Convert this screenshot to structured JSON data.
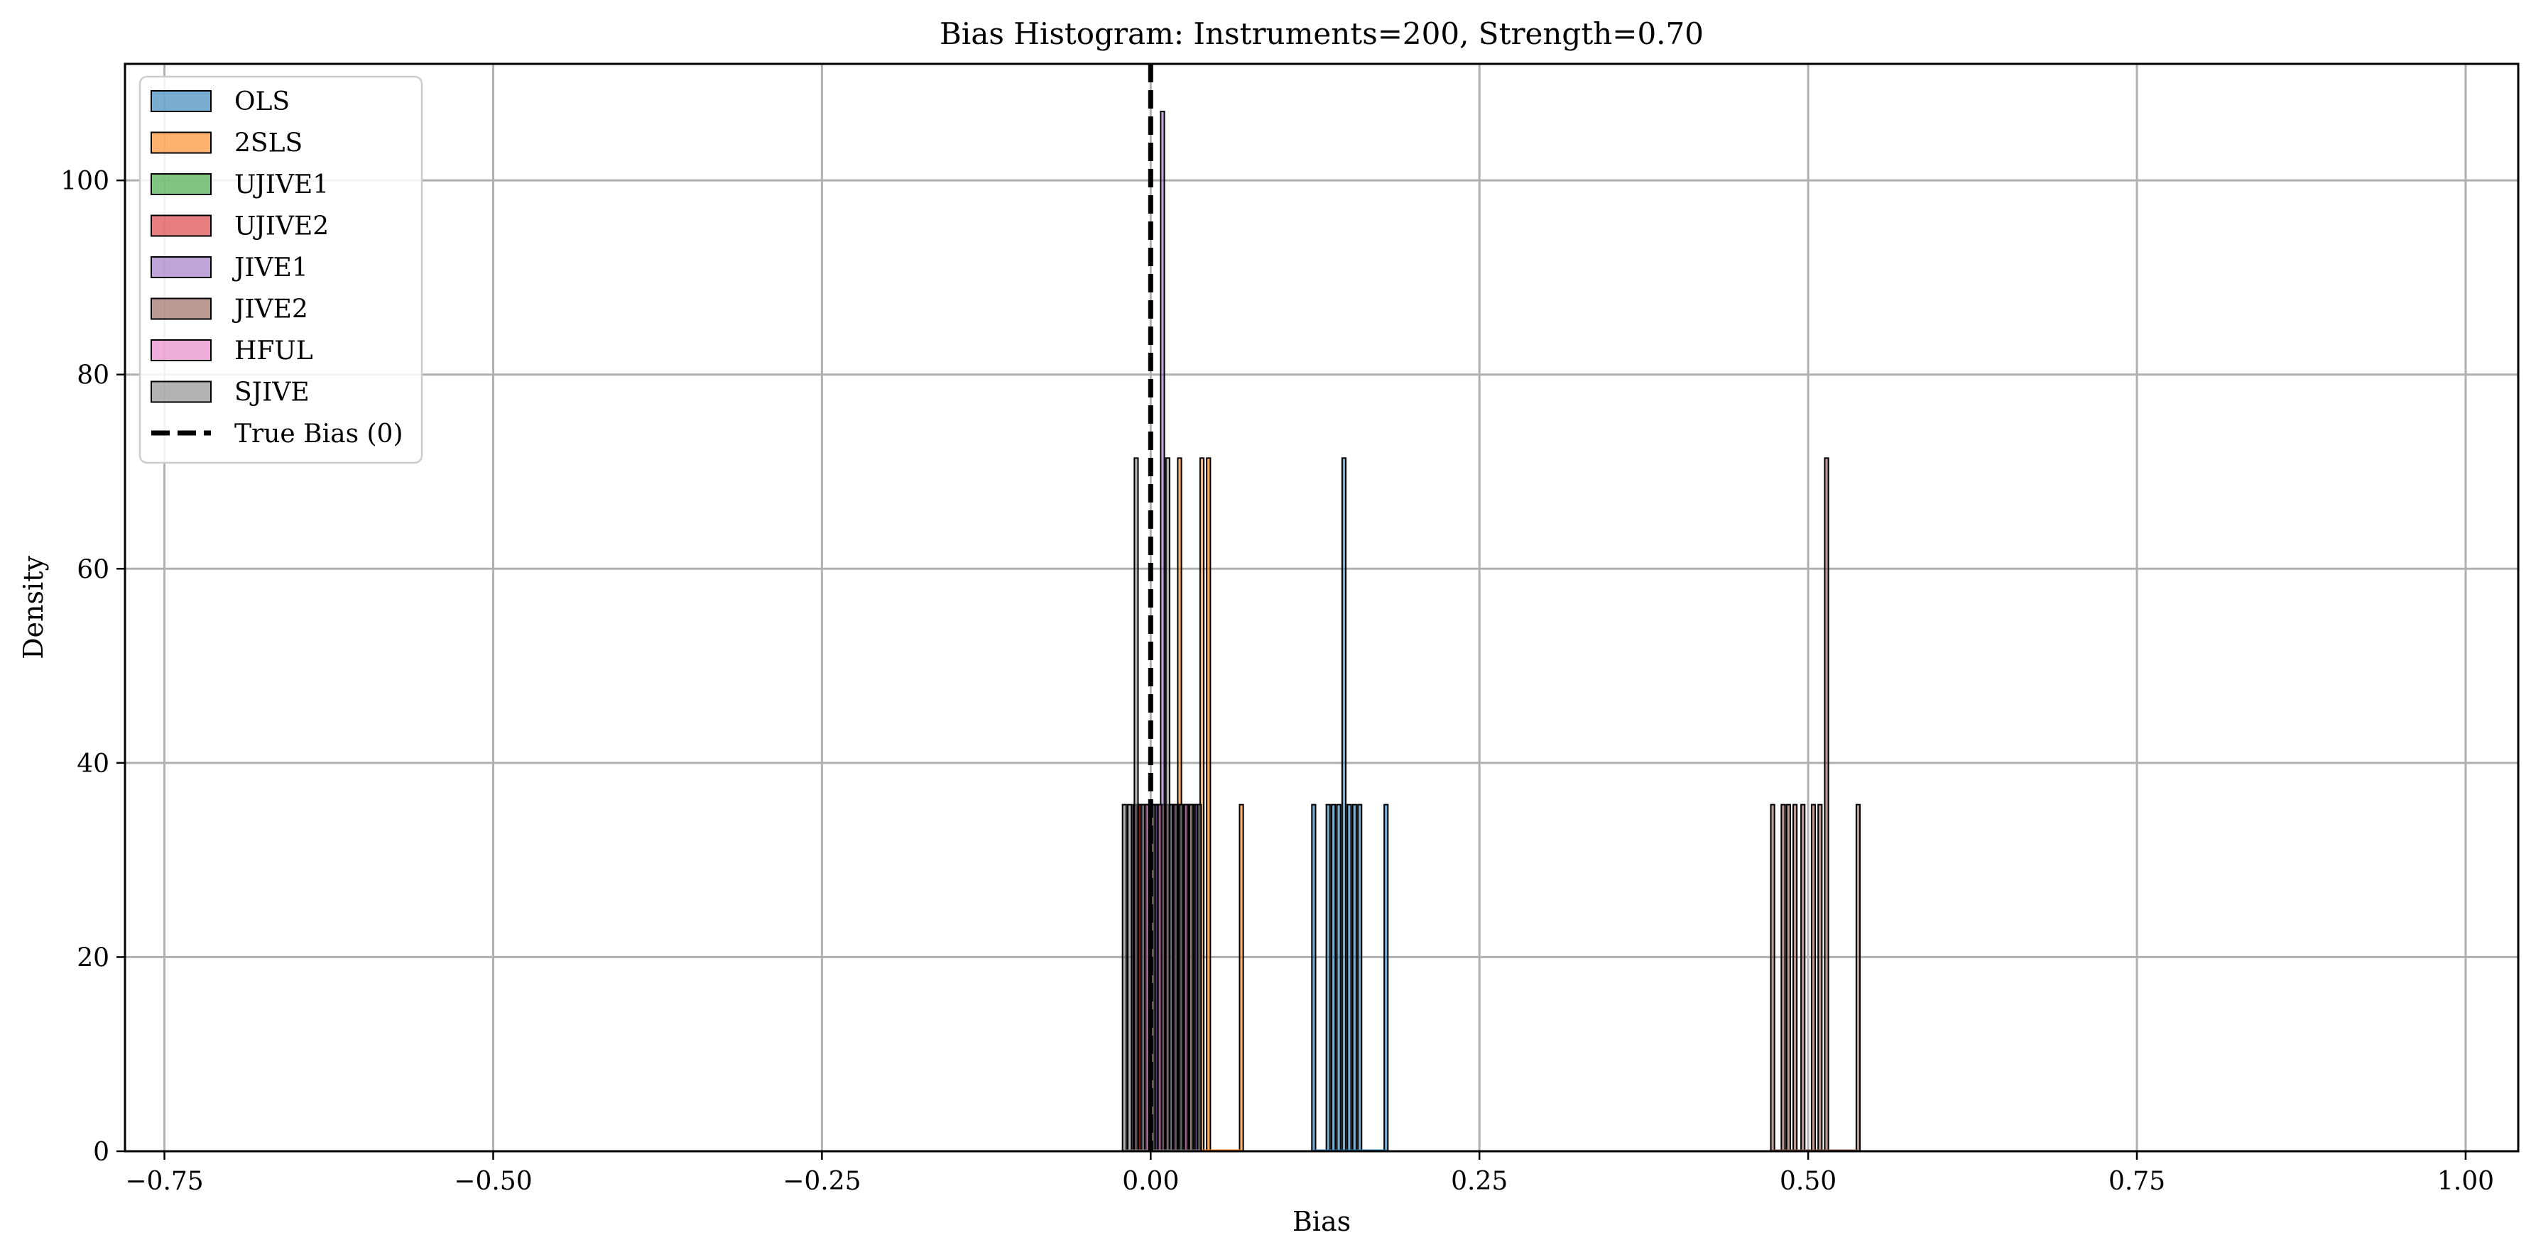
{
  "chart_data": {
    "type": "bar",
    "title": "Bias Histogram: Instruments=200, Strength=0.70",
    "xlabel": "Bias",
    "ylabel": "Density",
    "xlim": [
      -0.78,
      1.04
    ],
    "ylim": [
      0,
      112
    ],
    "xticks": [
      -0.75,
      -0.5,
      -0.25,
      0.0,
      0.25,
      0.5,
      0.75,
      1.0
    ],
    "xtick_labels": [
      "−0.75",
      "−0.50",
      "−0.25",
      "0.00",
      "0.25",
      "0.50",
      "0.75",
      "1.00"
    ],
    "yticks": [
      0,
      20,
      40,
      60,
      80,
      100
    ],
    "ytick_labels": [
      "0",
      "20",
      "40",
      "60",
      "80",
      "100"
    ],
    "grid": true,
    "legend_position": "top-left",
    "bar_width": 0.0028,
    "series": [
      {
        "name": "OLS",
        "color": "#1f77b4",
        "bars": [
          [
            0.124,
            35.7
          ],
          [
            0.135,
            35.7
          ],
          [
            0.139,
            35.7
          ],
          [
            0.143,
            35.7
          ],
          [
            0.147,
            71.4
          ],
          [
            0.151,
            35.7
          ],
          [
            0.155,
            35.7
          ],
          [
            0.159,
            35.7
          ],
          [
            0.179,
            35.7
          ]
        ]
      },
      {
        "name": "2SLS",
        "color": "#ff7f0e",
        "bars": [
          [
            0.005,
            35.7
          ],
          [
            0.01,
            35.7
          ],
          [
            0.022,
            71.4
          ],
          [
            0.03,
            35.7
          ],
          [
            0.039,
            71.4
          ],
          [
            0.044,
            71.4
          ],
          [
            0.069,
            35.7
          ]
        ]
      },
      {
        "name": "UJIVE1",
        "color": "#2ca02c",
        "bars": [
          [
            -0.01,
            35.7
          ],
          [
            -0.002,
            35.7
          ],
          [
            0.006,
            35.7
          ],
          [
            0.015,
            35.7
          ],
          [
            0.024,
            35.7
          ],
          [
            0.033,
            35.7
          ]
        ]
      },
      {
        "name": "UJIVE2",
        "color": "#d62728",
        "bars": [
          [
            -0.008,
            35.7
          ],
          [
            0.001,
            35.7
          ],
          [
            0.012,
            35.7
          ],
          [
            0.02,
            35.7
          ],
          [
            0.028,
            35.7
          ]
        ]
      },
      {
        "name": "JIVE1",
        "color": "#9467bd",
        "bars": [
          [
            -0.005,
            35.7
          ],
          [
            0.004,
            35.7
          ],
          [
            0.009,
            107.1
          ],
          [
            0.016,
            35.7
          ],
          [
            0.026,
            35.7
          ],
          [
            0.035,
            35.7
          ]
        ]
      },
      {
        "name": "JIVE2",
        "color": "#8c564b",
        "bars": [
          [
            0.473,
            35.7
          ],
          [
            0.481,
            35.7
          ],
          [
            0.485,
            35.7
          ],
          [
            0.49,
            35.7
          ],
          [
            0.496,
            35.7
          ],
          [
            0.504,
            35.7
          ],
          [
            0.509,
            35.7
          ],
          [
            0.514,
            71.4
          ],
          [
            0.538,
            35.7
          ]
        ]
      },
      {
        "name": "HFUL",
        "color": "#e377c2",
        "bars": [
          [
            -0.012,
            35.7
          ],
          [
            -0.003,
            35.7
          ],
          [
            0.007,
            35.7
          ],
          [
            0.018,
            35.7
          ],
          [
            0.027,
            35.7
          ]
        ]
      },
      {
        "name": "SJIVE",
        "color": "#7f7f7f",
        "bars": [
          [
            -0.02,
            35.7
          ],
          [
            -0.016,
            35.7
          ],
          [
            -0.011,
            71.4
          ],
          [
            -0.006,
            35.7
          ],
          [
            0.002,
            35.7
          ],
          [
            0.013,
            71.4
          ],
          [
            0.019,
            35.7
          ],
          [
            0.023,
            35.7
          ],
          [
            0.031,
            35.7
          ],
          [
            0.037,
            35.7
          ]
        ]
      }
    ],
    "true_bias_line": {
      "name": "True Bias (0)",
      "x": 0.0,
      "color": "#000000"
    },
    "colors": {
      "bar_edge": "#000000",
      "grid": "#b0b0b0"
    }
  }
}
